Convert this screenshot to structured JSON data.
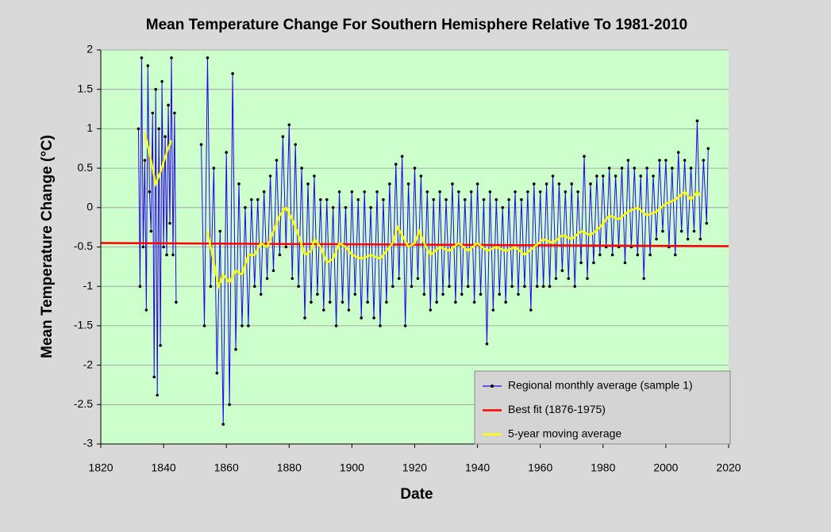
{
  "chart_data": {
    "type": "line",
    "title": "Mean Temperature Change For Southern Hemisphere Relative To 1981-2010",
    "x_label": "Date",
    "y_label": "Mean  Temperature  Change  (°C)",
    "xlim": [
      1820,
      2020
    ],
    "xticks": [
      1820,
      1840,
      1860,
      1880,
      1900,
      1920,
      1940,
      1960,
      1980,
      2000,
      2020
    ],
    "ylim": [
      -3,
      2
    ],
    "yticks": [
      -3,
      -2.5,
      -2,
      -1.5,
      -1,
      -0.5,
      0,
      0.5,
      1,
      1.5,
      2
    ],
    "grid": true,
    "legend": "lower right",
    "series": [
      {
        "name": "Regional monthly average (sample 1)",
        "color": "#2200ee",
        "marker": "#000000",
        "x": [
          1832,
          1832.5,
          1833,
          1833.5,
          1834,
          1834.5,
          1835,
          1835.5,
          1836,
          1836.5,
          1837,
          1837.5,
          1838,
          1838.5,
          1839,
          1839.5,
          1840,
          1840.5,
          1841,
          1841.5,
          1842,
          1842.5,
          1843,
          1843.5,
          1844,
          1848,
          1852,
          1853,
          1854,
          1855,
          1856,
          1857,
          1858,
          1859,
          1860,
          1861,
          1862,
          1863,
          1864,
          1865,
          1866,
          1867,
          1868,
          1869,
          1870,
          1871,
          1872,
          1873,
          1874,
          1875,
          1876,
          1877,
          1878,
          1879,
          1880,
          1881,
          1882,
          1883,
          1884,
          1885,
          1886,
          1887,
          1888,
          1889,
          1890,
          1891,
          1892,
          1893,
          1894,
          1895,
          1896,
          1897,
          1898,
          1899,
          1900,
          1901,
          1902,
          1903,
          1904,
          1905,
          1906,
          1907,
          1908,
          1909,
          1910,
          1911,
          1912,
          1913,
          1914,
          1915,
          1916,
          1917,
          1918,
          1919,
          1920,
          1921,
          1922,
          1923,
          1924,
          1925,
          1926,
          1927,
          1928,
          1929,
          1930,
          1931,
          1932,
          1933,
          1934,
          1935,
          1936,
          1937,
          1938,
          1939,
          1940,
          1941,
          1942,
          1943,
          1944,
          1945,
          1946,
          1947,
          1948,
          1949,
          1950,
          1951,
          1952,
          1953,
          1954,
          1955,
          1956,
          1957,
          1958,
          1959,
          1960,
          1961,
          1962,
          1963,
          1964,
          1965,
          1966,
          1967,
          1968,
          1969,
          1970,
          1971,
          1972,
          1973,
          1974,
          1975,
          1976,
          1977,
          1978,
          1979,
          1980,
          1981,
          1982,
          1983,
          1984,
          1985,
          1986,
          1987,
          1988,
          1989,
          1990,
          1991,
          1992,
          1993,
          1994,
          1995,
          1996,
          1997,
          1998,
          1999,
          2000,
          2001,
          2002,
          2003,
          2004,
          2005,
          2006,
          2007,
          2008,
          2009,
          2010,
          2011,
          2012,
          2013,
          2013.5
        ],
        "values": [
          1.0,
          -1.0,
          1.9,
          -0.5,
          0.6,
          -1.3,
          1.8,
          0.2,
          -0.3,
          1.2,
          -2.15,
          1.5,
          -2.38,
          1.0,
          -1.75,
          1.6,
          -0.5,
          0.9,
          -0.6,
          1.3,
          -0.2,
          1.9,
          -0.6,
          1.2,
          -1.2,
          null,
          0.8,
          -1.5,
          1.9,
          -1.0,
          0.5,
          -2.1,
          -0.3,
          -2.75,
          0.7,
          -2.5,
          1.7,
          -1.8,
          0.3,
          -1.5,
          0.0,
          -1.5,
          0.1,
          -1.0,
          0.1,
          -1.1,
          0.2,
          -0.9,
          0.4,
          -0.8,
          0.6,
          -0.6,
          0.9,
          -0.5,
          1.05,
          -0.9,
          0.8,
          -1.0,
          0.5,
          -1.4,
          0.3,
          -1.2,
          0.4,
          -1.1,
          0.1,
          -1.3,
          0.1,
          -1.2,
          0.0,
          -1.5,
          0.2,
          -1.2,
          0.0,
          -1.3,
          0.2,
          -1.1,
          0.1,
          -1.4,
          0.2,
          -1.2,
          0.0,
          -1.4,
          0.2,
          -1.5,
          0.1,
          -1.2,
          0.3,
          -1.0,
          0.55,
          -0.9,
          0.65,
          -1.5,
          0.3,
          -1.0,
          0.5,
          -0.9,
          0.4,
          -1.1,
          0.2,
          -1.3,
          0.1,
          -1.2,
          0.2,
          -1.1,
          0.1,
          -1.0,
          0.3,
          -1.2,
          0.2,
          -1.1,
          0.1,
          -1.0,
          0.2,
          -1.2,
          0.3,
          -1.1,
          0.1,
          -1.73,
          0.2,
          -1.3,
          0.1,
          -1.1,
          0.0,
          -1.2,
          0.1,
          -1.0,
          0.2,
          -1.1,
          0.1,
          -1.0,
          0.2,
          -1.3,
          0.3,
          -1.0,
          0.2,
          -1.0,
          0.3,
          -1.0,
          0.4,
          -0.9,
          0.3,
          -0.8,
          0.2,
          -0.9,
          0.3,
          -1.0,
          0.2,
          -0.7,
          0.65,
          -0.9,
          0.3,
          -0.7,
          0.4,
          -0.6,
          0.4,
          -0.5,
          0.5,
          -0.6,
          0.4,
          -0.5,
          0.5,
          -0.7,
          0.6,
          -0.5,
          0.5,
          -0.6,
          0.4,
          -0.9,
          0.5,
          -0.6,
          0.4,
          -0.4,
          0.6,
          -0.3,
          0.6,
          -0.5,
          0.5,
          -0.6,
          0.7,
          -0.3,
          0.6,
          -0.4,
          0.5,
          -0.3,
          1.1,
          -0.4,
          0.6,
          -0.2,
          0.75
        ]
      },
      {
        "name": "Best fit (1876-1975)",
        "color": "#ff0000",
        "x": [
          1820,
          2020
        ],
        "values": [
          -0.45,
          -0.49
        ]
      },
      {
        "name": "5-year moving average",
        "color": "#ffff00",
        "x": [
          1834,
          1836,
          1837.5,
          1839,
          1841,
          1842.5,
          1848,
          1854,
          1856,
          1857.5,
          1859,
          1861,
          1863,
          1865,
          1867,
          1869,
          1871,
          1873,
          1875,
          1877,
          1879,
          1881,
          1883,
          1885,
          1887,
          1888,
          1890,
          1892,
          1894,
          1896,
          1898,
          1900,
          1903,
          1906,
          1909,
          1911,
          1913,
          1914.5,
          1916,
          1918,
          1920,
          1921.5,
          1923,
          1925,
          1928,
          1931,
          1934,
          1937,
          1940,
          1943,
          1946,
          1949,
          1952,
          1955,
          1958,
          1961,
          1964,
          1967,
          1970,
          1973,
          1976,
          1979,
          1982,
          1985,
          1988,
          1991,
          1994,
          1997,
          2000,
          2003,
          2006,
          2008,
          2010,
          2011
        ],
        "values": [
          0.95,
          0.6,
          0.3,
          0.45,
          0.7,
          0.85,
          null,
          -0.3,
          -0.7,
          -1.0,
          -0.85,
          -0.95,
          -0.8,
          -0.85,
          -0.6,
          -0.6,
          -0.45,
          -0.5,
          -0.3,
          -0.1,
          0.0,
          -0.15,
          -0.35,
          -0.6,
          -0.55,
          -0.4,
          -0.5,
          -0.7,
          -0.65,
          -0.45,
          -0.5,
          -0.6,
          -0.65,
          -0.6,
          -0.65,
          -0.55,
          -0.45,
          -0.25,
          -0.35,
          -0.5,
          -0.45,
          -0.3,
          -0.45,
          -0.6,
          -0.5,
          -0.55,
          -0.45,
          -0.55,
          -0.45,
          -0.55,
          -0.5,
          -0.55,
          -0.5,
          -0.6,
          -0.5,
          -0.4,
          -0.45,
          -0.35,
          -0.4,
          -0.3,
          -0.35,
          -0.25,
          -0.1,
          -0.15,
          -0.05,
          0.0,
          -0.1,
          -0.05,
          0.05,
          0.1,
          0.2,
          0.1,
          0.2,
          0.15
        ]
      }
    ]
  }
}
